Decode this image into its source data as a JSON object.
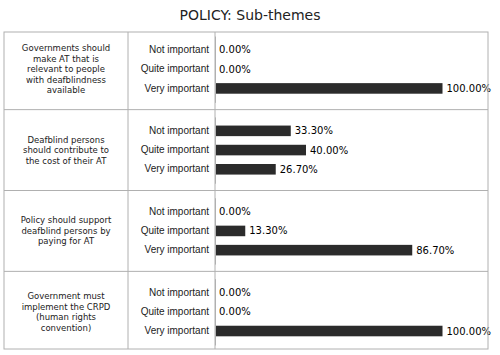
{
  "chart_data": {
    "type": "bar",
    "orientation": "horizontal",
    "title": "POLICY: Sub-themes",
    "color": "#2b2b2b",
    "xlim": [
      0,
      120
    ],
    "tick_labels": "y",
    "data_labels": true,
    "groups": [
      {
        "label": "Governments should\nmake AT that is\nrelevant to people\nwith deafblindness\navailable",
        "categories": [
          "Not important",
          "Quite important",
          "Very important"
        ],
        "values": [
          0.0,
          0.0,
          100.0
        ],
        "value_labels": [
          "0.00%",
          "0.00%",
          "100.00%"
        ]
      },
      {
        "label": "Deafblind persons\nshould contribute to\nthe cost of their AT",
        "categories": [
          "Not important",
          "Quite important",
          "Very important"
        ],
        "values": [
          33.3,
          40.0,
          26.7
        ],
        "value_labels": [
          "33.30%",
          "40.00%",
          "26.70%"
        ]
      },
      {
        "label": "Policy should support\ndeafblind persons by\npaying for AT",
        "categories": [
          "Not important",
          "Quite important",
          "Very important"
        ],
        "values": [
          0.0,
          13.3,
          86.7
        ],
        "value_labels": [
          "0.00%",
          "13.30%",
          "86.70%"
        ]
      },
      {
        "label": "Government must\nimplement the CRPD\n(human rights\nconvention)",
        "categories": [
          "Not important",
          "Quite important",
          "Very important"
        ],
        "values": [
          0.0,
          0.0,
          100.0
        ],
        "value_labels": [
          "0.00%",
          "0.00%",
          "100.00%"
        ]
      }
    ]
  }
}
